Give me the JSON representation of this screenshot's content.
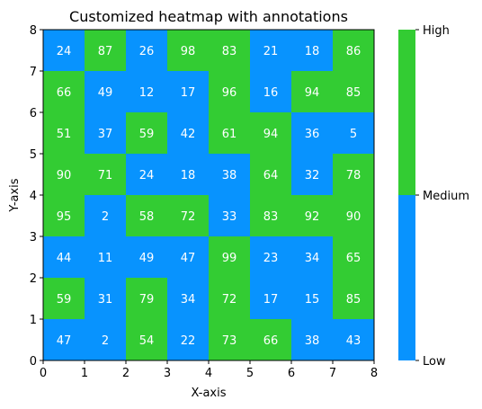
{
  "chart_data": {
    "type": "heatmap",
    "title": "Customized heatmap with annotations",
    "xlabel": "X-axis",
    "ylabel": "Y-axis",
    "xlim": [
      0,
      8
    ],
    "ylim": [
      0,
      8
    ],
    "x_ticks": [
      "0",
      "1",
      "2",
      "3",
      "4",
      "5",
      "6",
      "7",
      "8"
    ],
    "y_ticks": [
      "0",
      "1",
      "2",
      "3",
      "4",
      "5",
      "6",
      "7",
      "8"
    ],
    "rows_top_to_bottom": [
      [
        24,
        87,
        26,
        98,
        83,
        21,
        18,
        86
      ],
      [
        66,
        49,
        12,
        17,
        96,
        16,
        94,
        85
      ],
      [
        51,
        37,
        59,
        42,
        61,
        94,
        36,
        5
      ],
      [
        90,
        71,
        24,
        18,
        38,
        64,
        32,
        78
      ],
      [
        95,
        2,
        58,
        72,
        33,
        83,
        92,
        90
      ],
      [
        44,
        11,
        49,
        47,
        99,
        23,
        34,
        65
      ],
      [
        59,
        31,
        79,
        34,
        72,
        17,
        15,
        85
      ],
      [
        47,
        2,
        54,
        22,
        73,
        66,
        38,
        43
      ]
    ],
    "colorbar": {
      "labels": [
        "Low",
        "Medium",
        "High"
      ],
      "low_color": "#0893fe",
      "high_color": "#33cc33",
      "threshold": 50
    },
    "grid": false,
    "annotation_color": "#ffffff"
  }
}
